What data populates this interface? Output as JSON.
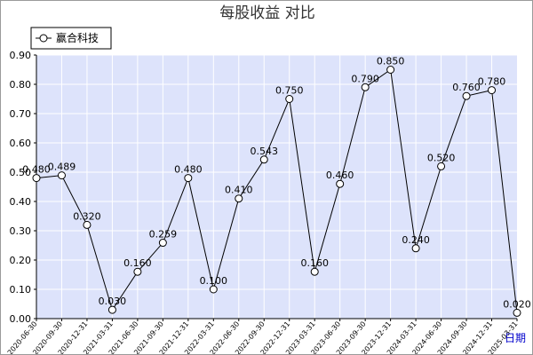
{
  "chart_data": {
    "type": "line",
    "title": "每股收益  对比",
    "xlabel": "日期",
    "ylabel": "",
    "ylim": [
      0,
      0.9
    ],
    "yticks": [
      "0.00",
      "0.10",
      "0.20",
      "0.30",
      "0.40",
      "0.50",
      "0.60",
      "0.70",
      "0.80",
      "0.90"
    ],
    "grid": true,
    "legend_position": "top-left",
    "categories": [
      "2020-06-30",
      "2020-09-30",
      "2020-12-31",
      "2021-03-31",
      "2021-06-30",
      "2021-09-30",
      "2021-12-31",
      "2022-03-31",
      "2022-06-30",
      "2022-09-30",
      "2022-12-31",
      "2023-03-31",
      "2023-06-30",
      "2023-09-30",
      "2023-12-31",
      "2024-03-31",
      "2024-06-30",
      "2024-09-30",
      "2024-12-31",
      "2025-03-31"
    ],
    "series": [
      {
        "name": "赢合科技",
        "values": [
          0.48,
          0.489,
          0.32,
          0.03,
          0.16,
          0.259,
          0.48,
          0.1,
          0.41,
          0.543,
          0.75,
          0.16,
          0.46,
          0.79,
          0.85,
          0.24,
          0.52,
          0.76,
          0.78,
          0.02
        ],
        "labels": [
          "0.480",
          "0.489",
          "0.320",
          "0.030",
          "0.160",
          "0.259",
          "0.480",
          "0.100",
          "0.410",
          "0.543",
          "0.750",
          "0.160",
          "0.460",
          "0.790",
          "0.850",
          "0.240",
          "0.520",
          "0.760",
          "0.780",
          "0.020"
        ]
      }
    ],
    "colors": {
      "plot_background": "#dde3fb",
      "grid": "#ffffff",
      "line": "#000000",
      "marker_fill": "#ffffff"
    }
  }
}
